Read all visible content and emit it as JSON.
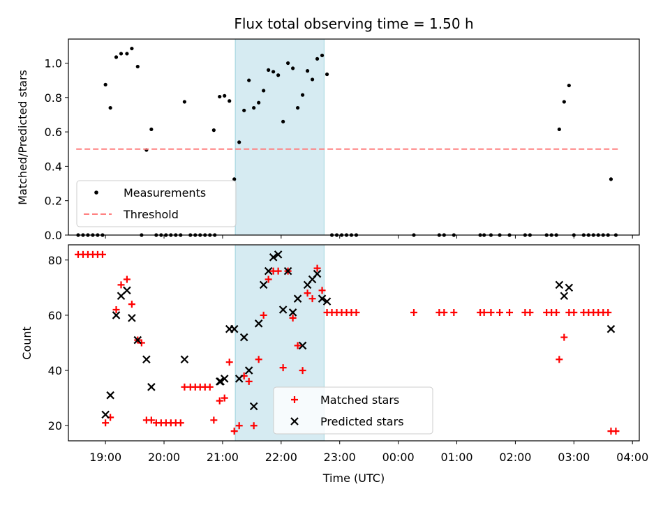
{
  "chart_data": [
    {
      "type": "scatter",
      "title": "Flux total observing time = 1.50 h",
      "xlabel": "",
      "ylabel": "Matched/Predicted stars",
      "ylim": [
        0,
        1.14
      ],
      "xlim": [
        "18:22",
        "04:07"
      ],
      "yticks": [
        "0.0",
        "0.2",
        "0.4",
        "0.6",
        "0.8",
        "1.0"
      ],
      "shaded_region": [
        "21:13",
        "22:44"
      ],
      "grid": false,
      "legend_position": "bottom-left",
      "series": [
        {
          "name": "Measurements",
          "marker": "dot",
          "color": "#000000",
          "points": [
            [
              "18:32",
              0.0
            ],
            [
              "18:37",
              0.0
            ],
            [
              "18:42",
              0.0
            ],
            [
              "18:47",
              0.0
            ],
            [
              "18:52",
              0.0
            ],
            [
              "18:57",
              0.0
            ],
            [
              "19:00",
              0.875
            ],
            [
              "19:05",
              0.74
            ],
            [
              "19:11",
              1.035
            ],
            [
              "19:16",
              1.055
            ],
            [
              "19:22",
              1.055
            ],
            [
              "19:27",
              1.085
            ],
            [
              "19:33",
              0.98
            ],
            [
              "19:37",
              0.0
            ],
            [
              "19:42",
              0.495
            ],
            [
              "19:47",
              0.615
            ],
            [
              "19:52",
              0.0
            ],
            [
              "19:57",
              0.0
            ],
            [
              "20:02",
              0.0
            ],
            [
              "20:07",
              0.0
            ],
            [
              "20:12",
              0.0
            ],
            [
              "20:17",
              0.0
            ],
            [
              "20:21",
              0.775
            ],
            [
              "20:27",
              0.0
            ],
            [
              "20:32",
              0.0
            ],
            [
              "20:37",
              0.0
            ],
            [
              "20:42",
              0.0
            ],
            [
              "20:47",
              0.0
            ],
            [
              "20:52",
              0.0
            ],
            [
              "20:51",
              0.61
            ],
            [
              "20:57",
              0.805
            ],
            [
              "21:02",
              0.81
            ],
            [
              "21:07",
              0.78
            ],
            [
              "21:12",
              0.325
            ],
            [
              "21:17",
              0.54
            ],
            [
              "21:22",
              0.725
            ],
            [
              "21:27",
              0.9
            ],
            [
              "21:32",
              0.74
            ],
            [
              "21:37",
              0.77
            ],
            [
              "21:42",
              0.84
            ],
            [
              "21:47",
              0.96
            ],
            [
              "21:52",
              0.95
            ],
            [
              "21:57",
              0.93
            ],
            [
              "22:02",
              0.66
            ],
            [
              "22:07",
              1.0
            ],
            [
              "22:12",
              0.97
            ],
            [
              "22:17",
              0.74
            ],
            [
              "22:22",
              0.815
            ],
            [
              "22:27",
              0.955
            ],
            [
              "22:32",
              0.905
            ],
            [
              "22:37",
              1.025
            ],
            [
              "22:42",
              1.045
            ],
            [
              "22:47",
              0.935
            ],
            [
              "22:52",
              0.0
            ],
            [
              "22:57",
              0.0
            ],
            [
              "23:02",
              0.0
            ],
            [
              "23:07",
              0.0
            ],
            [
              "23:12",
              0.0
            ],
            [
              "23:17",
              0.0
            ],
            [
              "00:16",
              0.0
            ],
            [
              "00:42",
              0.0
            ],
            [
              "00:47",
              0.0
            ],
            [
              "00:57",
              0.0
            ],
            [
              "01:24",
              0.0
            ],
            [
              "01:28",
              0.0
            ],
            [
              "01:35",
              0.0
            ],
            [
              "01:44",
              0.0
            ],
            [
              "01:54",
              0.0
            ],
            [
              "02:10",
              0.0
            ],
            [
              "02:15",
              0.0
            ],
            [
              "02:32",
              0.0
            ],
            [
              "02:37",
              0.0
            ],
            [
              "02:42",
              0.0
            ],
            [
              "02:45",
              0.615
            ],
            [
              "02:50",
              0.775
            ],
            [
              "02:55",
              0.87
            ],
            [
              "03:00",
              0.0
            ],
            [
              "03:10",
              0.0
            ],
            [
              "03:15",
              0.0
            ],
            [
              "03:20",
              0.0
            ],
            [
              "03:25",
              0.0
            ],
            [
              "03:30",
              0.0
            ],
            [
              "03:35",
              0.0
            ],
            [
              "03:38",
              0.325
            ],
            [
              "03:43",
              0.0
            ]
          ]
        },
        {
          "name": "Threshold",
          "marker": "dashed-line",
          "color": "#ff7f7f",
          "points": [
            [
              "18:30",
              0.5
            ],
            [
              "03:45",
              0.5
            ]
          ]
        }
      ]
    },
    {
      "type": "scatter",
      "title": "",
      "xlabel": "Time (UTC)",
      "ylabel": "Count",
      "ylim": [
        14.5,
        85.5
      ],
      "xlim": [
        "18:22",
        "04:07"
      ],
      "yticks": [
        "20",
        "40",
        "60",
        "80"
      ],
      "xticks": [
        "19:00",
        "20:00",
        "21:00",
        "22:00",
        "23:00",
        "00:00",
        "01:00",
        "02:00",
        "03:00",
        "04:00"
      ],
      "shaded_region": [
        "21:13",
        "22:44"
      ],
      "grid": false,
      "legend_position": "bottom-center",
      "series": [
        {
          "name": "Matched stars",
          "marker": "plus",
          "color": "#ff0000",
          "points": [
            [
              "18:32",
              82
            ],
            [
              "18:37",
              82
            ],
            [
              "18:42",
              82
            ],
            [
              "18:47",
              82
            ],
            [
              "18:52",
              82
            ],
            [
              "18:57",
              82
            ],
            [
              "19:00",
              21
            ],
            [
              "19:05",
              23
            ],
            [
              "19:11",
              62
            ],
            [
              "19:16",
              71
            ],
            [
              "19:22",
              73
            ],
            [
              "19:27",
              64
            ],
            [
              "19:33",
              51
            ],
            [
              "19:37",
              50
            ],
            [
              "19:42",
              22
            ],
            [
              "19:47",
              22
            ],
            [
              "19:52",
              21
            ],
            [
              "19:57",
              21
            ],
            [
              "20:02",
              21
            ],
            [
              "20:07",
              21
            ],
            [
              "20:12",
              21
            ],
            [
              "20:17",
              21
            ],
            [
              "20:21",
              34
            ],
            [
              "20:27",
              34
            ],
            [
              "20:32",
              34
            ],
            [
              "20:37",
              34
            ],
            [
              "20:42",
              34
            ],
            [
              "20:47",
              34
            ],
            [
              "20:51",
              22
            ],
            [
              "20:57",
              29
            ],
            [
              "21:02",
              30
            ],
            [
              "21:07",
              43
            ],
            [
              "21:12",
              18
            ],
            [
              "21:17",
              20
            ],
            [
              "21:22",
              38
            ],
            [
              "21:27",
              36
            ],
            [
              "21:32",
              20
            ],
            [
              "21:37",
              44
            ],
            [
              "21:42",
              60
            ],
            [
              "21:47",
              73
            ],
            [
              "21:52",
              76
            ],
            [
              "21:57",
              76
            ],
            [
              "22:02",
              41
            ],
            [
              "22:07",
              76
            ],
            [
              "22:12",
              59
            ],
            [
              "22:17",
              49
            ],
            [
              "22:22",
              40
            ],
            [
              "22:27",
              68
            ],
            [
              "22:32",
              66
            ],
            [
              "22:37",
              77
            ],
            [
              "22:42",
              69
            ],
            [
              "22:47",
              61
            ],
            [
              "22:52",
              61
            ],
            [
              "22:57",
              61
            ],
            [
              "23:02",
              61
            ],
            [
              "23:07",
              61
            ],
            [
              "23:12",
              61
            ],
            [
              "23:17",
              61
            ],
            [
              "00:16",
              61
            ],
            [
              "00:42",
              61
            ],
            [
              "00:47",
              61
            ],
            [
              "00:57",
              61
            ],
            [
              "01:24",
              61
            ],
            [
              "01:28",
              61
            ],
            [
              "01:35",
              61
            ],
            [
              "01:44",
              61
            ],
            [
              "01:54",
              61
            ],
            [
              "02:10",
              61
            ],
            [
              "02:15",
              61
            ],
            [
              "02:32",
              61
            ],
            [
              "02:37",
              61
            ],
            [
              "02:42",
              61
            ],
            [
              "02:45",
              44
            ],
            [
              "02:50",
              52
            ],
            [
              "02:55",
              61
            ],
            [
              "03:00",
              61
            ],
            [
              "03:10",
              61
            ],
            [
              "03:15",
              61
            ],
            [
              "03:20",
              61
            ],
            [
              "03:25",
              61
            ],
            [
              "03:30",
              61
            ],
            [
              "03:35",
              61
            ],
            [
              "03:38",
              18
            ],
            [
              "03:43",
              18
            ]
          ]
        },
        {
          "name": "Predicted stars",
          "marker": "x",
          "color": "#000000",
          "points": [
            [
              "19:00",
              24
            ],
            [
              "19:05",
              31
            ],
            [
              "19:11",
              60
            ],
            [
              "19:16",
              67
            ],
            [
              "19:22",
              69
            ],
            [
              "19:27",
              59
            ],
            [
              "19:33",
              51
            ],
            [
              "19:42",
              44
            ],
            [
              "19:47",
              34
            ],
            [
              "20:21",
              44
            ],
            [
              "20:57",
              36
            ],
            [
              "20:58",
              36
            ],
            [
              "21:02",
              37
            ],
            [
              "21:07",
              55
            ],
            [
              "21:12",
              55
            ],
            [
              "21:17",
              37
            ],
            [
              "21:22",
              52
            ],
            [
              "21:27",
              40
            ],
            [
              "21:32",
              27
            ],
            [
              "21:37",
              57
            ],
            [
              "21:42",
              71
            ],
            [
              "21:47",
              76
            ],
            [
              "21:52",
              81
            ],
            [
              "21:57",
              82
            ],
            [
              "22:02",
              62
            ],
            [
              "22:07",
              76
            ],
            [
              "22:12",
              61
            ],
            [
              "22:17",
              66
            ],
            [
              "22:22",
              49
            ],
            [
              "22:27",
              71
            ],
            [
              "22:32",
              73
            ],
            [
              "22:37",
              75
            ],
            [
              "22:42",
              66
            ],
            [
              "22:47",
              65
            ],
            [
              "02:45",
              71
            ],
            [
              "02:50",
              67
            ],
            [
              "02:55",
              70
            ],
            [
              "03:38",
              55
            ]
          ]
        }
      ]
    }
  ]
}
